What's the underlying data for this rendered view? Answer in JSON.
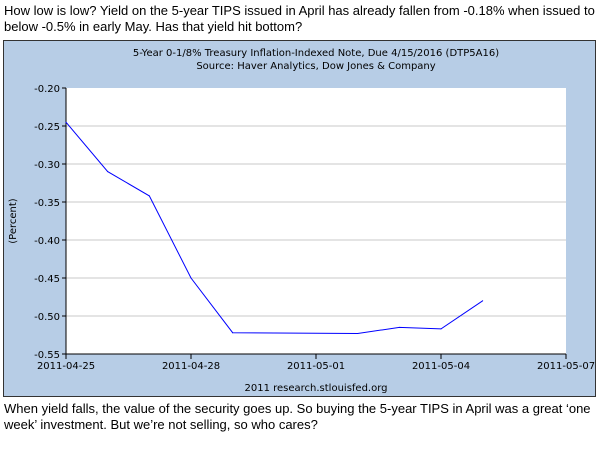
{
  "caption_top": "How low is low? Yield on the 5-year TIPS issued in April has already fallen from -0.18% when issued to below -0.5% in early May. Has that yield hit bottom?",
  "caption_bottom": "When yield falls, the value of the security goes up. So buying the 5-year TIPS in April was a great ‘one week’ investment. But we’re not selling, so who cares?",
  "chart_data": {
    "type": "line",
    "title": "5-Year 0-1/8% Treasury Inflation-Indexed Note, Due 4/15/2016 (DTP5A16)",
    "subtitle": "Source: Haver Analytics, Dow Jones & Company",
    "ylabel": "(Percent)",
    "xlabel": "",
    "footer": "2011 research.stlouisfed.org",
    "ylim": [
      -0.55,
      -0.2
    ],
    "yticks": [
      "-0.20",
      "-0.25",
      "-0.30",
      "-0.35",
      "-0.40",
      "-0.45",
      "-0.50",
      "-0.55"
    ],
    "xlim": [
      "2011-04-25",
      "2011-05-07"
    ],
    "xticks": [
      "2011-04-25",
      "2011-04-28",
      "2011-05-01",
      "2011-05-04",
      "2011-05-07"
    ],
    "grid": true,
    "line_color": "#0000ff",
    "series": [
      {
        "name": "DTP5A16",
        "x": [
          "2011-04-25",
          "2011-04-26",
          "2011-04-27",
          "2011-04-28",
          "2011-04-29",
          "2011-05-02",
          "2011-05-03",
          "2011-05-04",
          "2011-05-05"
        ],
        "values": [
          -0.245,
          -0.31,
          -0.342,
          -0.45,
          -0.522,
          -0.523,
          -0.515,
          -0.517,
          -0.48
        ]
      }
    ]
  }
}
